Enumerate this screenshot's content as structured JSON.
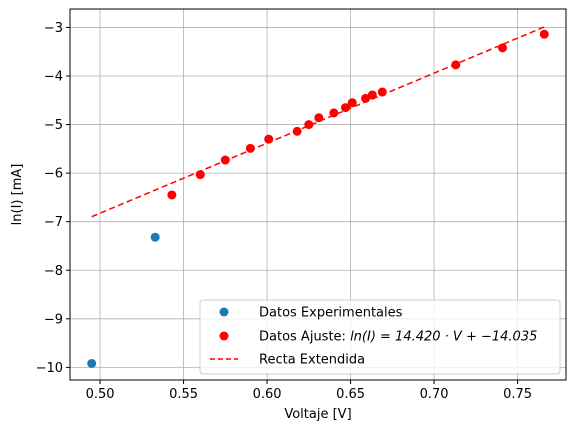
{
  "chart_data": {
    "type": "scatter",
    "xlabel": "Voltaje [V]",
    "ylabel": "ln(I) [mA]",
    "xlim": [
      0.482,
      0.779
    ],
    "ylim": [
      -10.26,
      -2.62
    ],
    "x_ticks": [
      0.5,
      0.55,
      0.6,
      0.65,
      0.7,
      0.75
    ],
    "x_tick_labels": [
      "0.50",
      "0.55",
      "0.60",
      "0.65",
      "0.70",
      "0.75"
    ],
    "y_ticks": [
      -10,
      -9,
      -8,
      -7,
      -6,
      -5,
      -4,
      -3
    ],
    "y_tick_labels": [
      "−10",
      "−9",
      "−8",
      "−7",
      "−6",
      "−5",
      "−4",
      "−3"
    ],
    "grid": true,
    "legend_position": "lower-right",
    "series": [
      {
        "name": "Datos Experimentales",
        "kind": "scatter",
        "color": "#1f77b4",
        "points": [
          {
            "x": 0.495,
            "y": -9.92
          },
          {
            "x": 0.533,
            "y": -7.32
          }
        ]
      },
      {
        "name": "Datos Ajuste: ",
        "name_math": "ln(I) = 14.420 · V + −14.035",
        "kind": "scatter",
        "color": "#ff0000",
        "points": [
          {
            "x": 0.543,
            "y": -6.45
          },
          {
            "x": 0.56,
            "y": -6.03
          },
          {
            "x": 0.575,
            "y": -5.73
          },
          {
            "x": 0.59,
            "y": -5.49
          },
          {
            "x": 0.601,
            "y": -5.3
          },
          {
            "x": 0.618,
            "y": -5.14
          },
          {
            "x": 0.625,
            "y": -5.0
          },
          {
            "x": 0.631,
            "y": -4.86
          },
          {
            "x": 0.64,
            "y": -4.76
          },
          {
            "x": 0.647,
            "y": -4.65
          },
          {
            "x": 0.651,
            "y": -4.55
          },
          {
            "x": 0.659,
            "y": -4.46
          },
          {
            "x": 0.663,
            "y": -4.39
          },
          {
            "x": 0.669,
            "y": -4.33
          },
          {
            "x": 0.713,
            "y": -3.77
          },
          {
            "x": 0.741,
            "y": -3.42
          },
          {
            "x": 0.766,
            "y": -3.14
          }
        ]
      },
      {
        "name": "Recta Extendida",
        "kind": "line",
        "style": "dashed",
        "color": "#ff0000",
        "slope": 14.42,
        "intercept": -14.035,
        "x_range": [
          0.495,
          0.766
        ]
      }
    ]
  }
}
